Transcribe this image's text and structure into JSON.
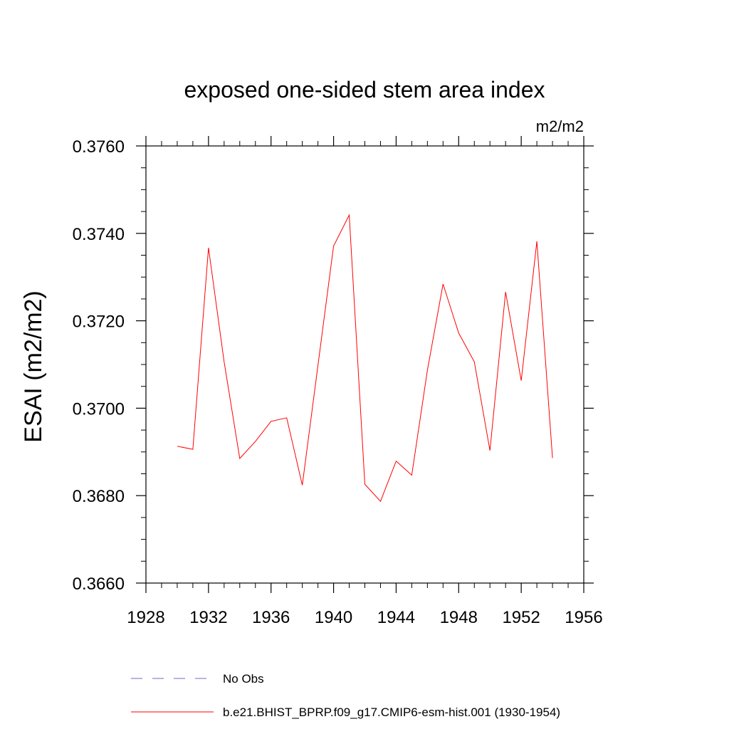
{
  "chart_data": {
    "type": "line",
    "title": "exposed one-sided stem area index",
    "units": "m2/m2",
    "ylabel": "ESAI  (m2/m2)",
    "xlabel": "",
    "xlim": [
      1928,
      1956
    ],
    "ylim": [
      0.366,
      0.376
    ],
    "x_ticks": [
      1928,
      1932,
      1936,
      1940,
      1944,
      1948,
      1952,
      1956
    ],
    "x_tick_labels": [
      "1928",
      "1932",
      "1936",
      "1940",
      "1944",
      "1948",
      "1952",
      "1956"
    ],
    "y_ticks": [
      0.366,
      0.368,
      0.37,
      0.372,
      0.374,
      0.376
    ],
    "y_tick_labels": [
      "0.3660",
      "0.3680",
      "0.3700",
      "0.3720",
      "0.3740",
      "0.3760"
    ],
    "grid": false,
    "legend_position": "bottom",
    "legend": [
      {
        "name": "No Obs",
        "color": "#6b6bc8",
        "style": "dashed"
      },
      {
        "name": "b.e21.BHIST_BPRP.f09_g17.CMIP6-esm-hist.001 (1930-1954)",
        "color": "#ff0000",
        "style": "solid"
      }
    ],
    "series": [
      {
        "name": "b.e21.BHIST_BPRP.f09_g17.CMIP6-esm-hist.001 (1930-1954)",
        "color": "#ff0000",
        "x": [
          1930,
          1931,
          1932,
          1933,
          1934,
          1935,
          1936,
          1937,
          1938,
          1939,
          1940,
          1941,
          1942,
          1943,
          1944,
          1945,
          1946,
          1947,
          1948,
          1949,
          1950,
          1951,
          1952,
          1953,
          1954
        ],
        "values": [
          0.36913,
          0.36906,
          0.37367,
          0.37106,
          0.36885,
          0.36924,
          0.3697,
          0.36978,
          0.36824,
          0.37098,
          0.37371,
          0.37442,
          0.36826,
          0.36787,
          0.36879,
          0.36847,
          0.37087,
          0.37284,
          0.37172,
          0.37106,
          0.36903,
          0.37266,
          0.37063,
          0.37382,
          0.36886
        ]
      }
    ]
  }
}
